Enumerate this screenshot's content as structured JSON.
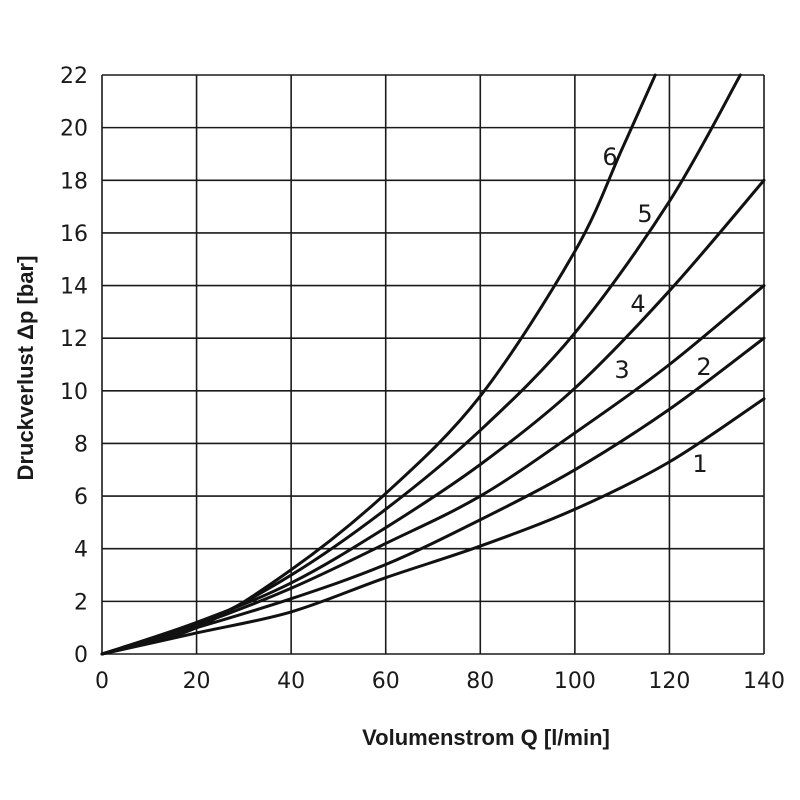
{
  "chart_data": {
    "type": "line",
    "xlabel": "Volumenstrom Q [l/min]",
    "ylabel": "Druckverlust Δp [bar]",
    "xlim": [
      0,
      140
    ],
    "ylim": [
      0,
      22
    ],
    "x_ticks": [
      "0",
      "20",
      "40",
      "60",
      "80",
      "100",
      "120",
      "140"
    ],
    "y_ticks": [
      "0",
      "2",
      "4",
      "6",
      "8",
      "10",
      "12",
      "14",
      "16",
      "18",
      "20",
      "22"
    ],
    "grid": true,
    "series": [
      {
        "name": "1",
        "x": [
          0,
          20,
          40,
          60,
          80,
          100,
          120,
          140
        ],
        "y": [
          0,
          0.8,
          1.6,
          2.9,
          4.1,
          5.5,
          7.3,
          9.7
        ]
      },
      {
        "name": "2",
        "x": [
          0,
          20,
          40,
          60,
          80,
          100,
          120,
          140
        ],
        "y": [
          0,
          1.0,
          2.1,
          3.4,
          5.1,
          7.0,
          9.3,
          12.0
        ]
      },
      {
        "name": "3",
        "x": [
          0,
          20,
          40,
          60,
          80,
          100,
          120,
          140
        ],
        "y": [
          0,
          1.1,
          2.5,
          4.2,
          6.0,
          8.4,
          11.0,
          14.0
        ]
      },
      {
        "name": "4",
        "x": [
          0,
          20,
          40,
          60,
          80,
          100,
          120,
          140
        ],
        "y": [
          0,
          1.2,
          2.7,
          4.8,
          7.2,
          10.1,
          13.8,
          18.0
        ]
      },
      {
        "name": "5",
        "x": [
          0,
          20,
          40,
          60,
          80,
          100,
          120,
          135
        ],
        "y": [
          0,
          1.1,
          3.0,
          5.5,
          8.5,
          12.2,
          17.2,
          22.0
        ]
      },
      {
        "name": "6",
        "x": [
          0,
          20,
          40,
          60,
          80,
          100,
          110,
          117
        ],
        "y": [
          0,
          1.0,
          3.2,
          6.1,
          9.8,
          15.3,
          19.2,
          22.0
        ]
      }
    ]
  }
}
